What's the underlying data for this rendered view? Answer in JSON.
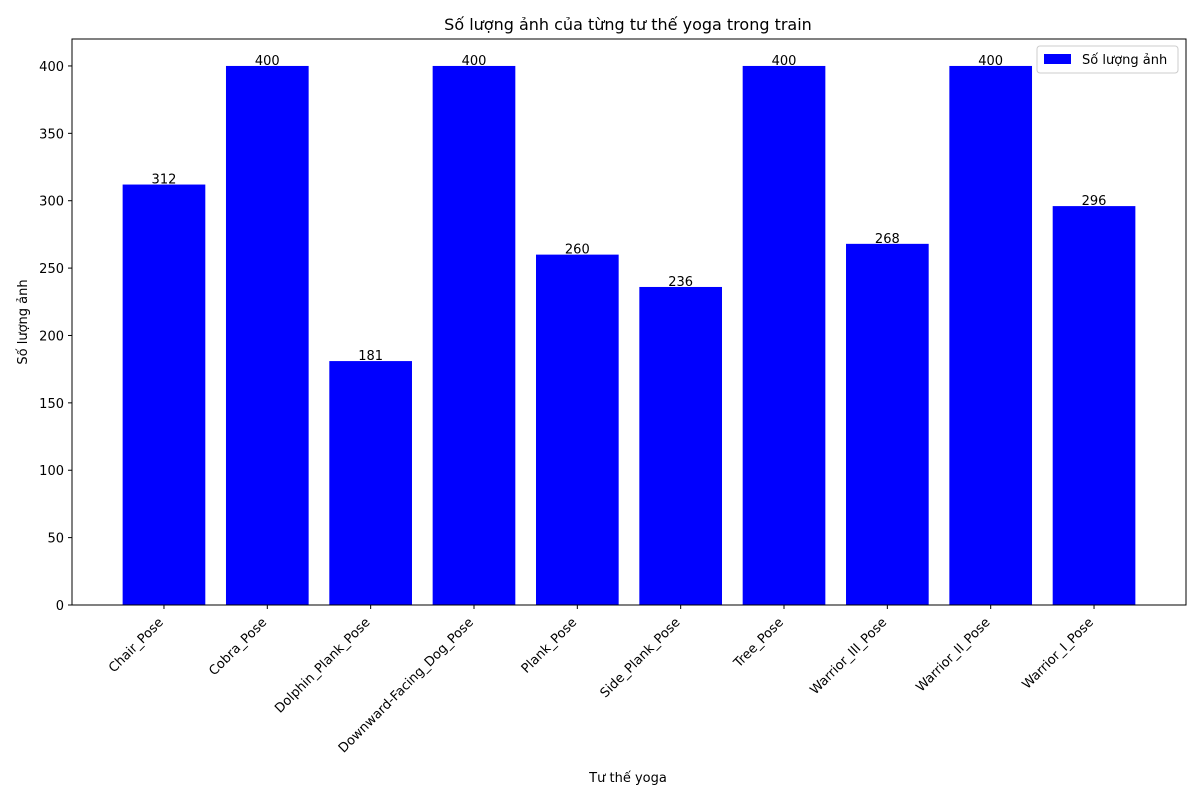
{
  "chart_data": {
    "type": "bar",
    "title": "Số lượng ảnh của từng tư thế yoga trong train",
    "xlabel": "Tư thế yoga",
    "ylabel": "Số lượng ảnh",
    "categories": [
      "Chair_Pose",
      "Cobra_Pose",
      "Dolphin_Plank_Pose",
      "Downward-Facing_Dog_Pose",
      "Plank_Pose",
      "Side_Plank_Pose",
      "Tree_Pose",
      "Warrior_III_Pose",
      "Warrior_II_Pose",
      "Warrior_I_Pose"
    ],
    "series": [
      {
        "name": "Số lượng ảnh",
        "values": [
          312,
          400,
          181,
          400,
          260,
          236,
          400,
          268,
          400,
          296
        ],
        "color": "#0000ff"
      }
    ],
    "ylim": [
      0,
      420
    ],
    "yticks": [
      0,
      50,
      100,
      150,
      200,
      250,
      300,
      350,
      400
    ],
    "grid": false,
    "legend_position": "top-right"
  }
}
